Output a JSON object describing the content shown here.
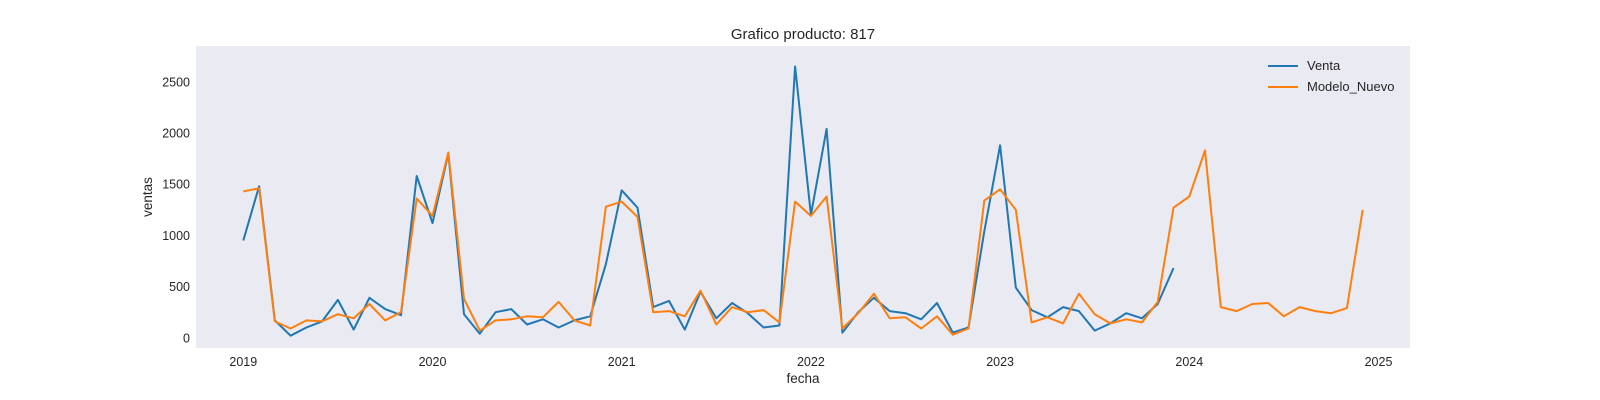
{
  "chart_data": {
    "type": "line",
    "title": "Grafico producto: 817",
    "xlabel": "fecha",
    "ylabel": "ventas",
    "x_axis": "date",
    "xlim": [
      "2018-10-01",
      "2025-03-01"
    ],
    "ylim": [
      -100,
      2850
    ],
    "x_ticks": [
      "2019",
      "2020",
      "2021",
      "2022",
      "2023",
      "2024",
      "2025"
    ],
    "y_ticks": [
      0,
      500,
      1000,
      1500,
      2000,
      2500
    ],
    "grid": false,
    "legend_position": "top-right",
    "colors": {
      "plot_background": "#eaeaf2",
      "venta": "#1f77b4",
      "modelo_nuevo": "#ff7f0e"
    },
    "series": [
      {
        "name": "Venta",
        "color": "#1f77b4",
        "x": [
          "2019-01",
          "2019-02",
          "2019-03",
          "2019-04",
          "2019-05",
          "2019-06",
          "2019-07",
          "2019-08",
          "2019-09",
          "2019-10",
          "2019-11",
          "2019-12",
          "2020-01",
          "2020-02",
          "2020-03",
          "2020-04",
          "2020-05",
          "2020-06",
          "2020-07",
          "2020-08",
          "2020-09",
          "2020-10",
          "2020-11",
          "2020-12",
          "2021-01",
          "2021-02",
          "2021-03",
          "2021-04",
          "2021-05",
          "2021-06",
          "2021-07",
          "2021-08",
          "2021-09",
          "2021-10",
          "2021-11",
          "2021-12",
          "2022-01",
          "2022-02",
          "2022-03",
          "2022-04",
          "2022-05",
          "2022-06",
          "2022-07",
          "2022-08",
          "2022-09",
          "2022-10",
          "2022-11",
          "2022-12",
          "2023-01",
          "2023-02",
          "2023-03",
          "2023-04",
          "2023-05",
          "2023-06",
          "2023-07",
          "2023-08",
          "2023-09",
          "2023-10",
          "2023-11",
          "2023-12"
        ],
        "y": [
          950,
          1480,
          170,
          20,
          100,
          160,
          370,
          80,
          390,
          280,
          220,
          1580,
          1120,
          1800,
          230,
          40,
          250,
          280,
          130,
          180,
          100,
          170,
          210,
          720,
          1440,
          1270,
          300,
          360,
          80,
          450,
          190,
          340,
          240,
          100,
          120,
          2650,
          1200,
          2040,
          50,
          250,
          390,
          260,
          240,
          180,
          340,
          50,
          100,
          1040,
          1880,
          490,
          270,
          200,
          300,
          260,
          70,
          140,
          240,
          190,
          330,
          680
        ]
      },
      {
        "name": "Modelo_Nuevo",
        "color": "#ff7f0e",
        "x": [
          "2019-01",
          "2019-02",
          "2019-03",
          "2019-04",
          "2019-05",
          "2019-06",
          "2019-07",
          "2019-08",
          "2019-09",
          "2019-10",
          "2019-11",
          "2019-12",
          "2020-01",
          "2020-02",
          "2020-03",
          "2020-04",
          "2020-05",
          "2020-06",
          "2020-07",
          "2020-08",
          "2020-09",
          "2020-10",
          "2020-11",
          "2020-12",
          "2021-01",
          "2021-02",
          "2021-03",
          "2021-04",
          "2021-05",
          "2021-06",
          "2021-07",
          "2021-08",
          "2021-09",
          "2021-10",
          "2021-11",
          "2021-12",
          "2022-01",
          "2022-02",
          "2022-03",
          "2022-04",
          "2022-05",
          "2022-06",
          "2022-07",
          "2022-08",
          "2022-09",
          "2022-10",
          "2022-11",
          "2022-12",
          "2023-01",
          "2023-02",
          "2023-03",
          "2023-04",
          "2023-05",
          "2023-06",
          "2023-07",
          "2023-08",
          "2023-09",
          "2023-10",
          "2023-11",
          "2023-12",
          "2024-01",
          "2024-02",
          "2024-03",
          "2024-04",
          "2024-05",
          "2024-06",
          "2024-07",
          "2024-08",
          "2024-09",
          "2024-10",
          "2024-11",
          "2024-12"
        ],
        "y": [
          1430,
          1460,
          160,
          90,
          170,
          160,
          230,
          190,
          330,
          170,
          250,
          1360,
          1190,
          1810,
          380,
          70,
          170,
          180,
          210,
          200,
          350,
          170,
          120,
          1280,
          1330,
          1180,
          250,
          260,
          210,
          460,
          130,
          300,
          250,
          270,
          150,
          1330,
          1190,
          1380,
          90,
          240,
          430,
          190,
          200,
          90,
          210,
          30,
          90,
          1340,
          1450,
          1250,
          150,
          200,
          140,
          430,
          230,
          140,
          180,
          150,
          350,
          1270,
          1380,
          1830,
          300,
          260,
          330,
          340,
          210,
          300,
          260,
          240,
          290,
          1250
        ]
      }
    ]
  }
}
